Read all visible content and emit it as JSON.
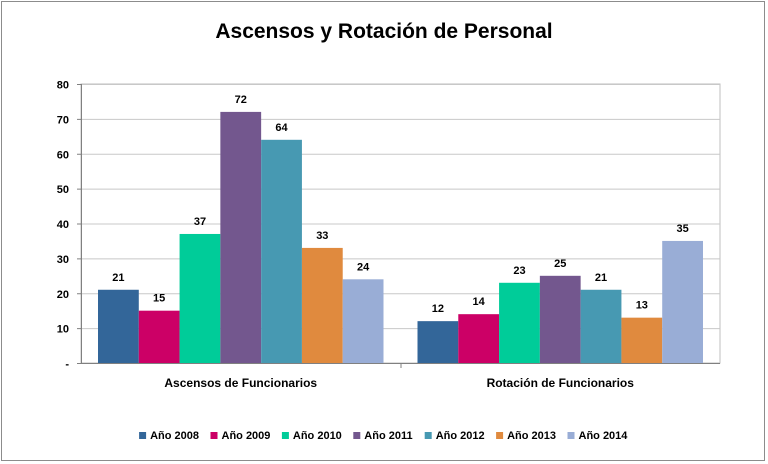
{
  "chart_data": {
    "type": "bar",
    "title": "Ascensos y Rotación de Personal",
    "xlabel": "",
    "ylabel": "",
    "ylim": [
      0,
      80
    ],
    "yticks": [
      {
        "value": 0,
        "label": "-"
      },
      {
        "value": 10,
        "label": "10"
      },
      {
        "value": 20,
        "label": "20"
      },
      {
        "value": 30,
        "label": "30"
      },
      {
        "value": 40,
        "label": "40"
      },
      {
        "value": 50,
        "label": "50"
      },
      {
        "value": 60,
        "label": "60"
      },
      {
        "value": 70,
        "label": "70"
      },
      {
        "value": 80,
        "label": "80"
      }
    ],
    "grid": true,
    "legend_position": "bottom",
    "categories": [
      "Ascensos de Funcionarios",
      "Rotación de Funcionarios"
    ],
    "series": [
      {
        "name": "Año 2008",
        "color": "#336699",
        "values": [
          21,
          12
        ]
      },
      {
        "name": "Año 2009",
        "color": "#cc0066",
        "values": [
          15,
          14
        ]
      },
      {
        "name": "Año 2010",
        "color": "#00cc99",
        "values": [
          37,
          23
        ]
      },
      {
        "name": "Año 2011",
        "color": "#73578e",
        "values": [
          72,
          25
        ]
      },
      {
        "name": "Año 2012",
        "color": "#4799b2",
        "values": [
          64,
          21
        ]
      },
      {
        "name": "Año 2013",
        "color": "#e08a3e",
        "values": [
          33,
          13
        ]
      },
      {
        "name": "Año 2014",
        "color": "#99add6",
        "values": [
          24,
          35
        ]
      }
    ]
  }
}
